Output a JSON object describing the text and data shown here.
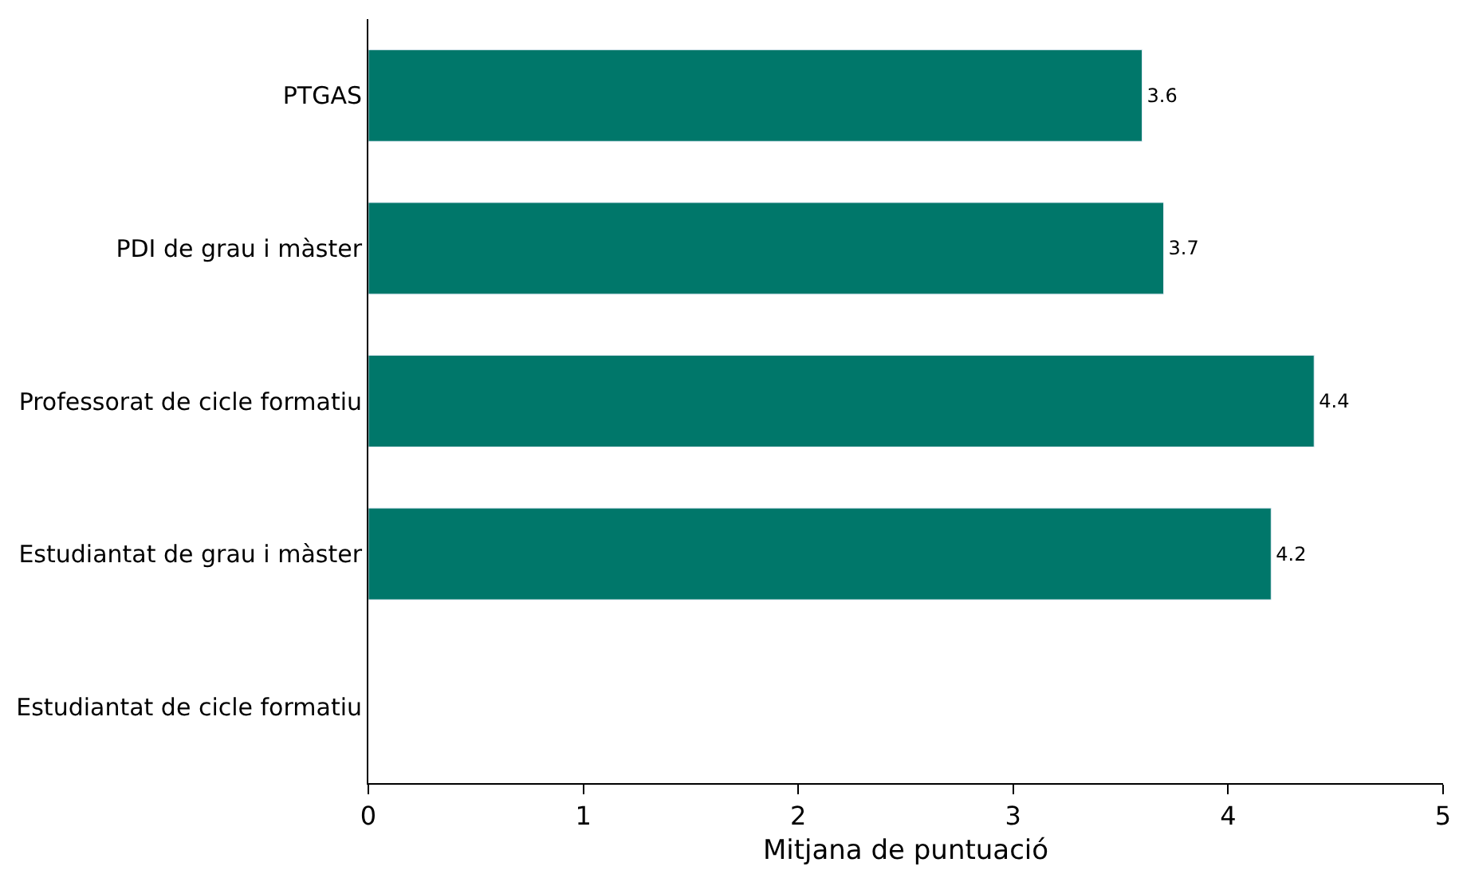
{
  "chart_data": {
    "type": "bar",
    "orientation": "horizontal",
    "xlabel": "Mitjana de puntuació",
    "categories": [
      "PTGAS",
      "PDI de grau i màster",
      "Professorat de cicle formatiu",
      "Estudiantat de grau i màster",
      "Estudiantat de cicle formatiu"
    ],
    "values": [
      3.6,
      3.7,
      4.4,
      4.2,
      null
    ],
    "color": "#00776a",
    "xlim": [
      0,
      5
    ],
    "xticks": [
      0,
      1,
      2,
      3,
      4,
      5
    ],
    "data_labels": true
  }
}
